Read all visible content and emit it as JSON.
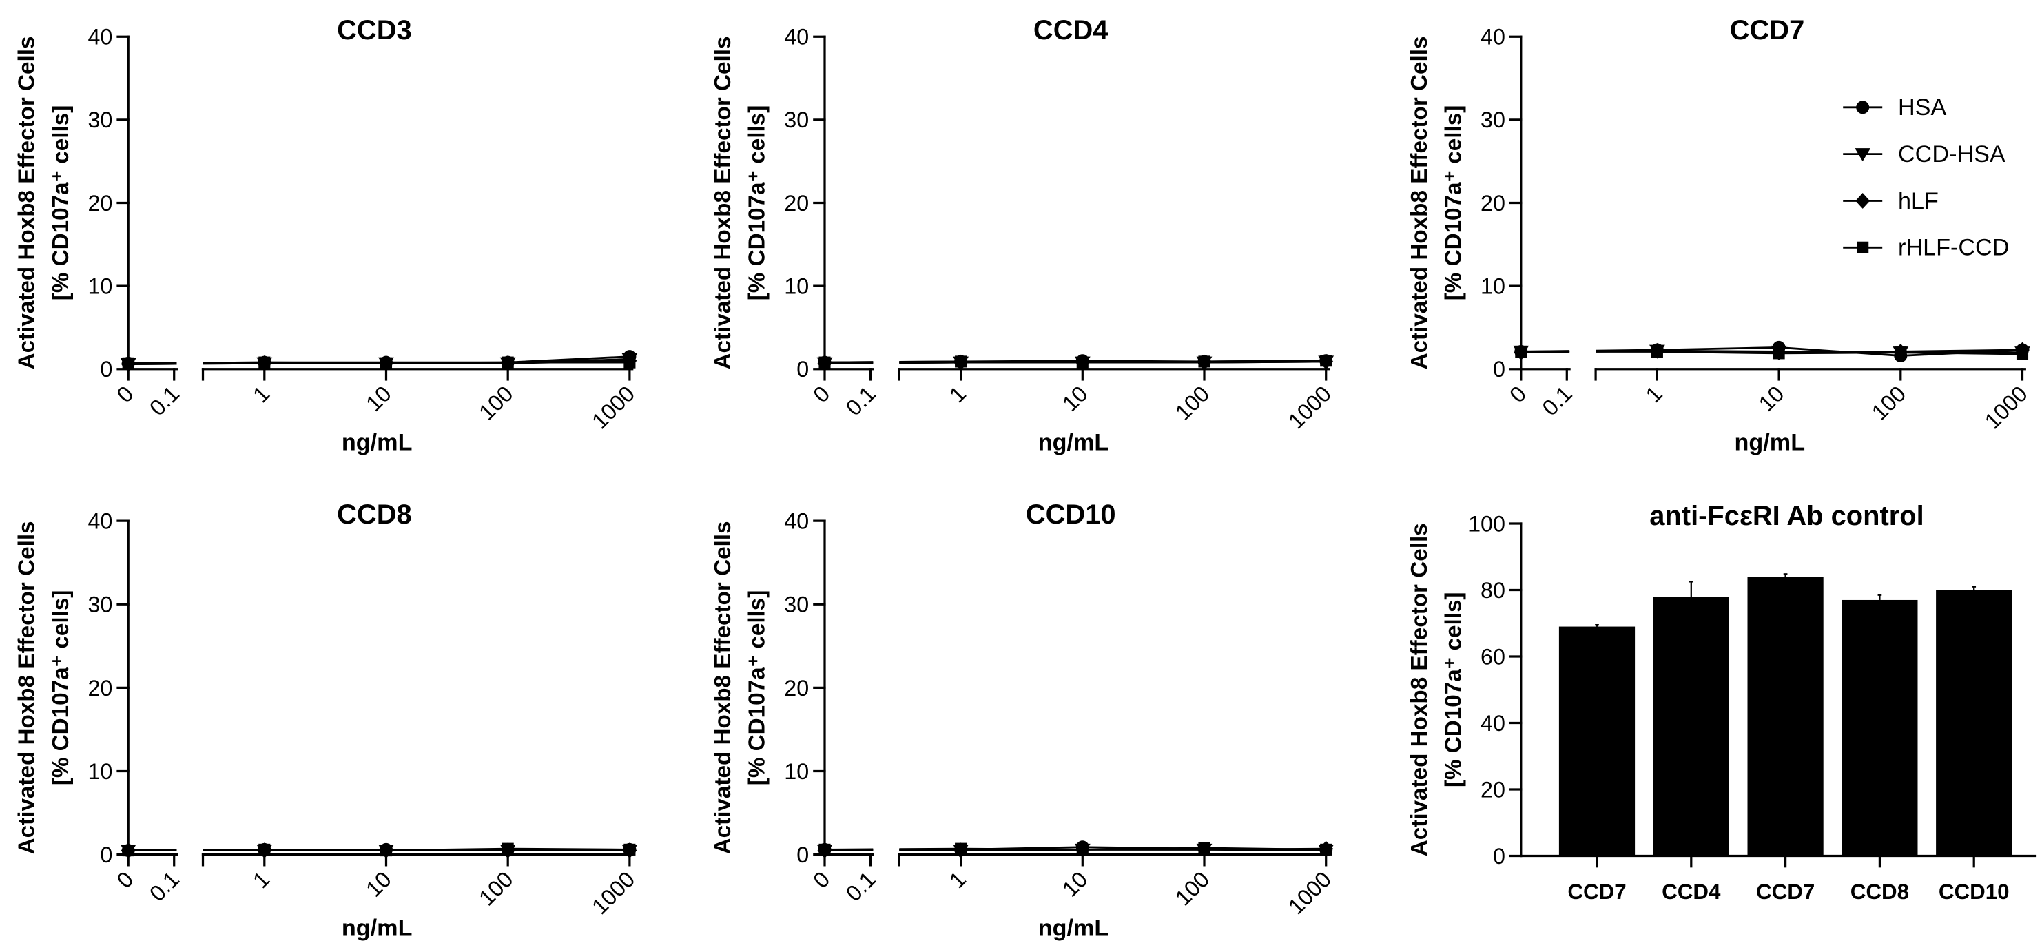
{
  "chart_data": [
    {
      "type": "line",
      "title": "CCD3",
      "ylabel": [
        "Activated Hoxb8 Effector Cells",
        "[% CD107a⁺ cells]"
      ],
      "xlabel": "ng/mL",
      "ylim": [
        0,
        40
      ],
      "yticks": [
        0,
        10,
        20,
        30,
        40
      ],
      "xticks": [
        "0",
        "0.1",
        "1",
        "10",
        "100",
        "1000"
      ],
      "x": [
        0,
        1,
        10,
        100,
        1000
      ],
      "series": [
        {
          "name": "HSA",
          "values": [
            0.7,
            0.8,
            0.8,
            0.8,
            1.5
          ]
        },
        {
          "name": "CCD-HSA",
          "values": [
            0.6,
            0.7,
            0.7,
            0.7,
            1.2
          ]
        },
        {
          "name": "hLF",
          "values": [
            0.6,
            0.7,
            0.7,
            0.7,
            1.0
          ]
        },
        {
          "name": "rHLF-CCD",
          "values": [
            0.7,
            0.8,
            0.7,
            0.8,
            0.8
          ]
        }
      ]
    },
    {
      "type": "line",
      "title": "CCD4",
      "ylabel": [
        "Activated Hoxb8 Effector Cells",
        "[% CD107a⁺ cells]"
      ],
      "xlabel": "ng/mL",
      "ylim": [
        0,
        40
      ],
      "yticks": [
        0,
        10,
        20,
        30,
        40
      ],
      "xticks": [
        "0",
        "0.1",
        "1",
        "10",
        "100",
        "1000"
      ],
      "x": [
        0,
        1,
        10,
        100,
        1000
      ],
      "series": [
        {
          "name": "HSA",
          "values": [
            0.8,
            0.9,
            1.0,
            0.9,
            1.0
          ]
        },
        {
          "name": "CCD-HSA",
          "values": [
            0.7,
            0.8,
            0.8,
            0.8,
            0.9
          ]
        },
        {
          "name": "hLF",
          "values": [
            0.7,
            0.8,
            0.8,
            0.8,
            0.9
          ]
        },
        {
          "name": "rHLF-CCD",
          "values": [
            0.8,
            0.9,
            0.8,
            0.9,
            1.0
          ]
        }
      ]
    },
    {
      "type": "line",
      "title": "CCD7",
      "ylabel": [
        "Activated Hoxb8 Effector Cells",
        "[% CD107a⁺ cells]"
      ],
      "xlabel": "ng/mL",
      "ylim": [
        0,
        40
      ],
      "yticks": [
        0,
        10,
        20,
        30,
        40
      ],
      "xticks": [
        "0",
        "0.1",
        "1",
        "10",
        "100",
        "1000"
      ],
      "x": [
        0,
        1,
        10,
        100,
        1000
      ],
      "series": [
        {
          "name": "HSA",
          "values": [
            2.1,
            2.3,
            2.6,
            1.6,
            2.3
          ]
        },
        {
          "name": "CCD-HSA",
          "values": [
            2.1,
            2.2,
            2.1,
            2.0,
            2.0
          ]
        },
        {
          "name": "hLF",
          "values": [
            2.0,
            2.2,
            2.0,
            2.1,
            2.3
          ]
        },
        {
          "name": "rHLF-CCD",
          "values": [
            2.1,
            2.1,
            1.9,
            2.0,
            1.8
          ]
        }
      ]
    },
    {
      "type": "line",
      "title": "CCD8",
      "ylabel": [
        "Activated Hoxb8 Effector Cells",
        "[% CD107a⁺ cells]"
      ],
      "xlabel": "ng/mL",
      "ylim": [
        0,
        40
      ],
      "yticks": [
        0,
        10,
        20,
        30,
        40
      ],
      "xticks": [
        "0",
        "0.1",
        "1",
        "10",
        "100",
        "1000"
      ],
      "x": [
        0,
        1,
        10,
        100,
        1000
      ],
      "series": [
        {
          "name": "HSA",
          "values": [
            0.5,
            0.6,
            0.6,
            0.6,
            0.6
          ]
        },
        {
          "name": "CCD-HSA",
          "values": [
            0.5,
            0.5,
            0.5,
            0.5,
            0.5
          ]
        },
        {
          "name": "hLF",
          "values": [
            0.5,
            0.5,
            0.5,
            0.5,
            0.5
          ]
        },
        {
          "name": "rHLF-CCD",
          "values": [
            0.5,
            0.6,
            0.5,
            0.7,
            0.6
          ]
        }
      ]
    },
    {
      "type": "line",
      "title": "CCD10",
      "ylabel": [
        "Activated Hoxb8 Effector Cells",
        "[% CD107a⁺ cells]"
      ],
      "xlabel": "ng/mL",
      "ylim": [
        0,
        40
      ],
      "yticks": [
        0,
        10,
        20,
        30,
        40
      ],
      "xticks": [
        "0",
        "0.1",
        "1",
        "10",
        "100",
        "1000"
      ],
      "x": [
        0,
        1,
        10,
        100,
        1000
      ],
      "series": [
        {
          "name": "HSA",
          "values": [
            0.6,
            0.6,
            0.9,
            0.7,
            0.6
          ]
        },
        {
          "name": "CCD-HSA",
          "values": [
            0.5,
            0.5,
            0.6,
            0.6,
            0.5
          ]
        },
        {
          "name": "hLF",
          "values": [
            0.5,
            0.5,
            0.6,
            0.6,
            0.7
          ]
        },
        {
          "name": "rHLF-CCD",
          "values": [
            0.6,
            0.7,
            0.6,
            0.8,
            0.6
          ]
        }
      ]
    },
    {
      "type": "bar",
      "title": "anti-FcεRI Ab control",
      "ylabel": [
        "Activated Hoxb8 Effector Cells",
        "[% CD107a⁺ cells]"
      ],
      "ylim": [
        0,
        100
      ],
      "yticks": [
        0,
        20,
        40,
        60,
        80,
        100
      ],
      "categories": [
        "CCD7",
        "CCD4",
        "CCD7",
        "CCD8",
        "CCD10"
      ],
      "values": [
        69,
        78,
        84,
        77,
        80
      ],
      "errors": [
        0.5,
        4.5,
        0.8,
        1.5,
        1.0
      ]
    }
  ]
}
